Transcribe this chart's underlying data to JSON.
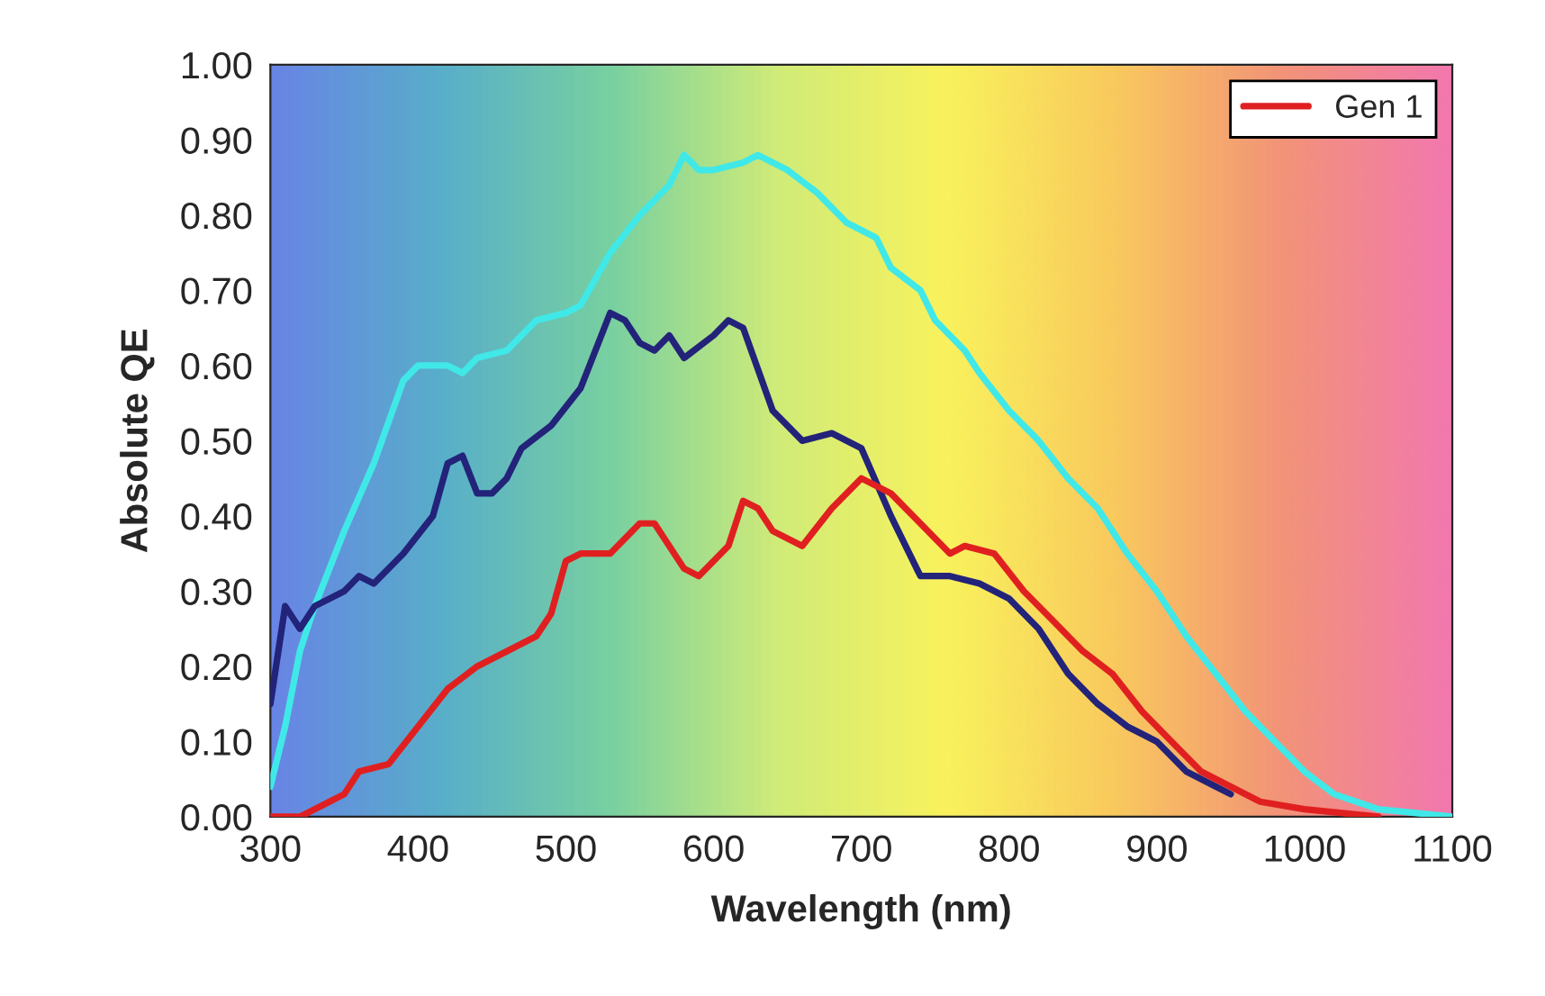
{
  "chart_data": {
    "type": "line",
    "xlabel": "Wavelength (nm)",
    "ylabel": "Absolute QE",
    "xlim": [
      300,
      1100
    ],
    "xticks": [
      300,
      400,
      500,
      600,
      700,
      800,
      900,
      1000,
      1100
    ],
    "ylim": [
      0,
      1
    ],
    "yticks": [
      {
        "value": 0,
        "label": "0.00"
      },
      {
        "value": 0.1,
        "label": "0.10"
      },
      {
        "value": 0.2,
        "label": "0.20"
      },
      {
        "value": 0.3,
        "label": "0.30"
      },
      {
        "value": 0.4,
        "label": "0.40"
      },
      {
        "value": 0.5,
        "label": "0.50"
      },
      {
        "value": 0.6,
        "label": "0.60"
      },
      {
        "value": 0.7,
        "label": "0.70"
      },
      {
        "value": 0.8,
        "label": "0.80"
      },
      {
        "value": 0.9,
        "label": "0.90"
      },
      {
        "value": 1,
        "label": "1.00"
      }
    ],
    "grid": false,
    "legend": "top right",
    "marker": "none",
    "line_style": "solid",
    "series": [
      {
        "color": "#40e8e8",
        "x": [
          300,
          310,
          320,
          330,
          350,
          370,
          390,
          400,
          420,
          430,
          440,
          460,
          480,
          500,
          510,
          530,
          550,
          570,
          580,
          590,
          600,
          620,
          630,
          650,
          670,
          690,
          710,
          720,
          740,
          750,
          770,
          780,
          800,
          820,
          840,
          860,
          880,
          900,
          920,
          940,
          960,
          980,
          1000,
          1020,
          1050,
          1100
        ],
        "values": [
          0.04,
          0.12,
          0.22,
          0.28,
          0.38,
          0.47,
          0.58,
          0.6,
          0.6,
          0.59,
          0.61,
          0.62,
          0.66,
          0.67,
          0.68,
          0.75,
          0.8,
          0.84,
          0.88,
          0.86,
          0.86,
          0.87,
          0.88,
          0.86,
          0.83,
          0.79,
          0.77,
          0.73,
          0.7,
          0.66,
          0.62,
          0.59,
          0.54,
          0.5,
          0.45,
          0.41,
          0.35,
          0.3,
          0.24,
          0.19,
          0.14,
          0.1,
          0.06,
          0.03,
          0.01,
          0.0
        ]
      },
      {
        "color": "#23237a",
        "x": [
          300,
          310,
          320,
          330,
          350,
          360,
          370,
          390,
          410,
          420,
          430,
          440,
          450,
          460,
          470,
          490,
          510,
          520,
          530,
          540,
          550,
          560,
          570,
          580,
          600,
          610,
          620,
          640,
          660,
          680,
          700,
          720,
          740,
          760,
          780,
          800,
          820,
          840,
          860,
          880,
          900,
          920,
          940,
          950
        ],
        "values": [
          0.15,
          0.28,
          0.25,
          0.28,
          0.3,
          0.32,
          0.31,
          0.35,
          0.4,
          0.47,
          0.48,
          0.43,
          0.43,
          0.45,
          0.49,
          0.52,
          0.57,
          0.62,
          0.67,
          0.66,
          0.63,
          0.62,
          0.64,
          0.61,
          0.64,
          0.66,
          0.65,
          0.54,
          0.5,
          0.51,
          0.49,
          0.4,
          0.32,
          0.32,
          0.31,
          0.29,
          0.25,
          0.19,
          0.15,
          0.12,
          0.1,
          0.06,
          0.04,
          0.03
        ]
      },
      {
        "name": "Gen 1",
        "color": "#e02020",
        "x": [
          300,
          320,
          340,
          350,
          360,
          380,
          400,
          420,
          440,
          460,
          480,
          490,
          500,
          510,
          530,
          550,
          560,
          580,
          590,
          610,
          620,
          630,
          640,
          660,
          680,
          700,
          720,
          740,
          760,
          770,
          790,
          810,
          830,
          850,
          870,
          890,
          910,
          930,
          950,
          970,
          1000,
          1050
        ],
        "values": [
          0.0,
          0.0,
          0.02,
          0.03,
          0.06,
          0.07,
          0.12,
          0.17,
          0.2,
          0.22,
          0.24,
          0.27,
          0.34,
          0.35,
          0.35,
          0.39,
          0.39,
          0.33,
          0.32,
          0.36,
          0.42,
          0.41,
          0.38,
          0.36,
          0.41,
          0.45,
          0.43,
          0.39,
          0.35,
          0.36,
          0.35,
          0.3,
          0.26,
          0.22,
          0.19,
          0.14,
          0.1,
          0.06,
          0.04,
          0.02,
          0.01,
          0.0
        ]
      }
    ]
  }
}
